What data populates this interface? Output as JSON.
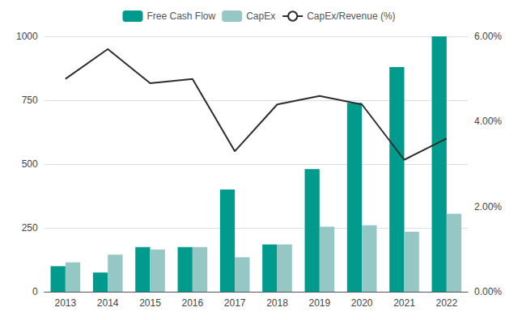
{
  "chart_data": {
    "type": "bar",
    "categories": [
      "2013",
      "2014",
      "2015",
      "2016",
      "2017",
      "2018",
      "2019",
      "2020",
      "2021",
      "2022"
    ],
    "series": [
      {
        "name": "Free Cash Flow",
        "color": "#009b8d",
        "values": [
          100,
          75,
          175,
          175,
          400,
          185,
          480,
          740,
          880,
          1000
        ]
      },
      {
        "name": "CapEx",
        "color": "#95c8c4",
        "values": [
          115,
          145,
          165,
          175,
          135,
          185,
          255,
          260,
          235,
          305
        ]
      },
      {
        "name": "CapEx/Revenue (%)",
        "type": "line",
        "axis": "y2",
        "color": "#2d2d2d",
        "line_style": "solid",
        "values": [
          5.0,
          5.7,
          4.9,
          5.0,
          3.3,
          4.4,
          4.6,
          4.4,
          3.1,
          3.6
        ]
      }
    ],
    "ylim": [
      0,
      1000
    ],
    "yticks": [
      0,
      250,
      500,
      750,
      1000
    ],
    "y2lim": [
      0.0,
      6.0
    ],
    "y2ticks": [
      {
        "value": 0.0,
        "label": "0.00%"
      },
      {
        "value": 2.0,
        "label": "2.00%"
      },
      {
        "value": 4.0,
        "label": "4.00%"
      },
      {
        "value": 6.0,
        "label": "6.00%"
      }
    ],
    "grid": true,
    "legend": "top"
  }
}
